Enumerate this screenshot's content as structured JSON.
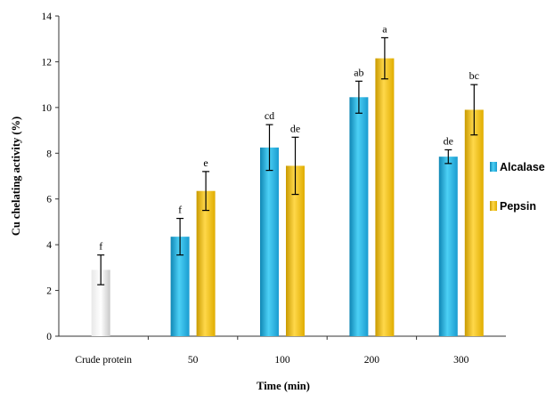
{
  "chart_data": {
    "type": "bar",
    "xlabel": "Time (min)",
    "ylabel": "Cu chelating activity (%)",
    "ylim": [
      0,
      14
    ],
    "yticks": [
      0,
      2,
      4,
      6,
      8,
      10,
      12,
      14
    ],
    "categories": [
      "Crude protein",
      "50",
      "100",
      "200",
      "300"
    ],
    "series": [
      {
        "name": "Alcalase",
        "color": "#1faee0",
        "values": [
          2.9,
          4.35,
          8.25,
          10.45,
          7.85
        ],
        "errors": [
          0.65,
          0.8,
          1.0,
          0.7,
          0.3
        ],
        "letters": [
          "f",
          "f",
          "cd",
          "ab",
          "de"
        ]
      },
      {
        "name": "Pepsin",
        "color": "#f2c200",
        "values": [
          null,
          6.35,
          7.45,
          12.15,
          9.9
        ],
        "errors": [
          null,
          0.85,
          1.25,
          0.9,
          1.1
        ],
        "letters": [
          null,
          "e",
          "de",
          "a",
          "bc"
        ]
      }
    ],
    "crude_color": "#d9d9d9",
    "legend_position": "right",
    "grid": false
  }
}
